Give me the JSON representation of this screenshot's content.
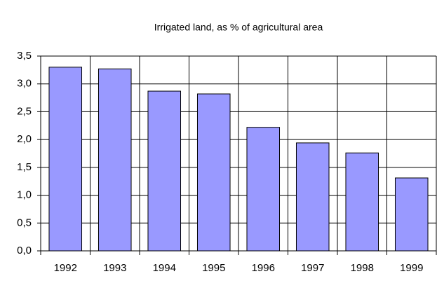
{
  "chart_data": {
    "type": "bar",
    "title": "Irrigated land, as % of agricultural area",
    "categories": [
      "1992",
      "1993",
      "1994",
      "1995",
      "1996",
      "1997",
      "1998",
      "1999"
    ],
    "values": [
      3.3,
      3.27,
      2.87,
      2.82,
      2.22,
      1.94,
      1.76,
      1.31
    ],
    "color": "#9999ff",
    "ylim": [
      0,
      3.5
    ],
    "yticks": [
      {
        "value": 0,
        "label": "0,0"
      },
      {
        "value": 0.5,
        "label": "0,5"
      },
      {
        "value": 1,
        "label": "1,0"
      },
      {
        "value": 1.5,
        "label": "1,5"
      },
      {
        "value": 2,
        "label": "2,0"
      },
      {
        "value": 2.5,
        "label": "2,5"
      },
      {
        "value": 3,
        "label": "3,0"
      },
      {
        "value": 3.5,
        "label": "3,5"
      }
    ],
    "grid": true
  }
}
